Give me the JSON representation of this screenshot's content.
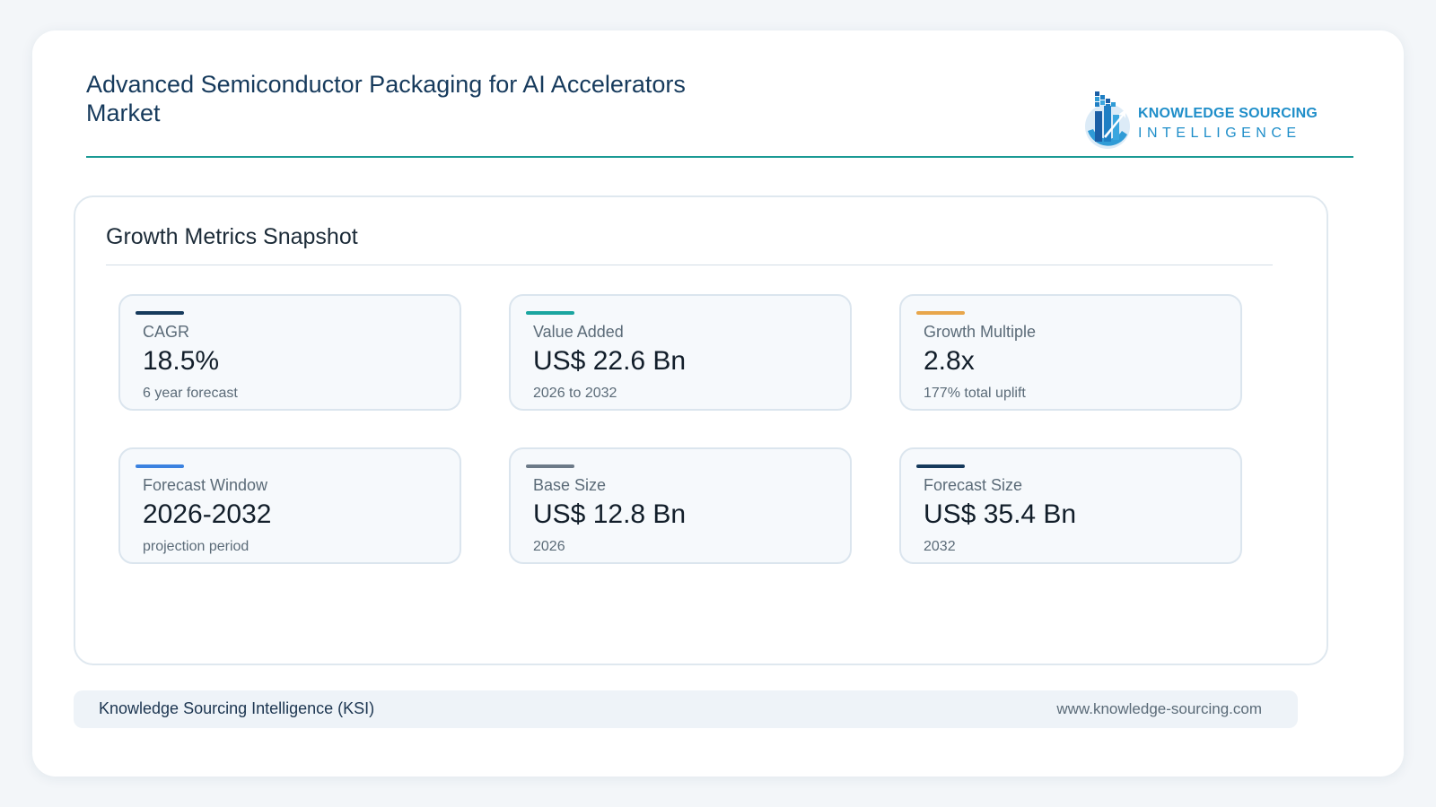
{
  "header": {
    "title": "Advanced Semiconductor Packaging for AI Accelerators Market",
    "logo": {
      "line1": "KNOWLEDGE SOURCING",
      "line2": "INTELLIGENCE",
      "icon": "building-chart-logo-icon",
      "colors": {
        "primary": "#1f8ec9",
        "dark": "#16437a"
      }
    },
    "rule_color": "#1a9a94"
  },
  "panel": {
    "title": "Growth Metrics Snapshot",
    "metrics": [
      {
        "label": "CAGR",
        "value": "18.5%",
        "sub": "6 year forecast",
        "accent": "#163a5c"
      },
      {
        "label": "Value Added",
        "value": "US$ 22.6 Bn",
        "sub": "2026 to 2032",
        "accent": "#1aa5a0"
      },
      {
        "label": "Growth Multiple",
        "value": "2.8x",
        "sub": "177% total uplift",
        "accent": "#e8a64b"
      },
      {
        "label": "Forecast Window",
        "value": "2026-2032",
        "sub": "projection period",
        "accent": "#3b82e0"
      },
      {
        "label": "Base Size",
        "value": "US$ 12.8 Bn",
        "sub": "2026",
        "accent": "#6c7a88"
      },
      {
        "label": "Forecast Size",
        "value": "US$ 35.4 Bn",
        "sub": "2032",
        "accent": "#163a5c"
      }
    ]
  },
  "footer": {
    "left": "Knowledge Sourcing Intelligence (KSI)",
    "right": "www.knowledge-sourcing.com"
  }
}
